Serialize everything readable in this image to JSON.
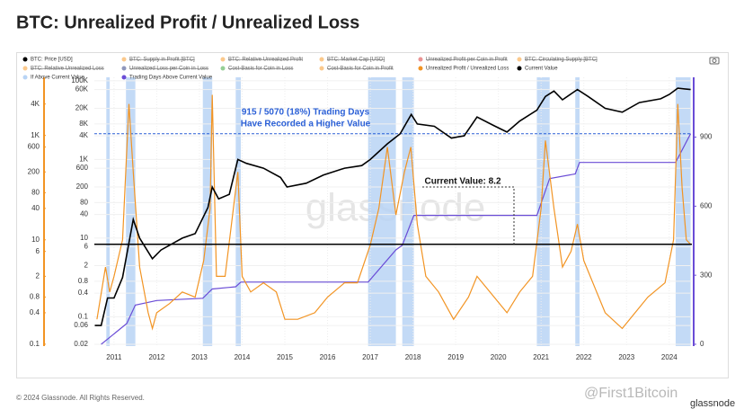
{
  "title": "BTC: Unrealized Profit / Unrealized Loss",
  "footer": "© 2024 Glassnode. All Rights Reserved.",
  "logo": "glassnode",
  "watermark": "glassnode",
  "credit": "@First1Bitcoin",
  "chart_data": {
    "type": "line",
    "xlim": [
      2010.54,
      2024.53
    ],
    "xticks": [
      2011,
      2012,
      2013,
      2014,
      2015,
      2016,
      2017,
      2018,
      2019,
      2020,
      2021,
      2022,
      2023,
      2024
    ],
    "ylim": [
      0.018,
      123000
    ],
    "log": true,
    "grid": true,
    "yticks": [
      {
        "value": 100000,
        "label": "100K"
      },
      {
        "value": 60000,
        "label": "60K"
      },
      {
        "value": 20000,
        "label": "20K"
      },
      {
        "value": 8000,
        "label": "8K"
      },
      {
        "value": 4000,
        "label": "4K"
      },
      {
        "value": 1000,
        "label": "1K"
      },
      600,
      200,
      80,
      40,
      10,
      6,
      2,
      0.8,
      0.4,
      0.1,
      0.06,
      0.02
    ],
    "y3lim": [
      0.092,
      13000
    ],
    "y3ticks": [
      {
        "value": 4000,
        "label": "4K"
      },
      {
        "value": 1000,
        "label": "1K"
      },
      600,
      200,
      80,
      40,
      10,
      6,
      2,
      0.8,
      0.4,
      0.1
    ],
    "y2lim": [
      -8,
      1160
    ],
    "y2ticks": [
      0,
      300,
      600,
      900
    ],
    "annotations": [
      "915 / 5070 (18%) Trading Days",
      "Have Recorded a Higher Value",
      "Current Value: 8.2"
    ],
    "reference_line": {
      "value": 915,
      "axis": "y2",
      "color": "#2a5fd6"
    },
    "series": [
      {
        "name": "BTC: Price [USD]",
        "color": "#000000",
        "axis": "y",
        "x": [
          2010.55,
          2010.7,
          2010.85,
          2011.0,
          2011.2,
          2011.45,
          2011.6,
          2011.9,
          2012.1,
          2012.6,
          2012.9,
          2013.2,
          2013.3,
          2013.45,
          2013.7,
          2013.9,
          2014.1,
          2014.5,
          2014.9,
          2015.05,
          2015.5,
          2015.9,
          2016.4,
          2016.8,
          2017.0,
          2017.4,
          2017.7,
          2017.96,
          2018.1,
          2018.5,
          2018.9,
          2019.2,
          2019.5,
          2019.9,
          2020.2,
          2020.5,
          2020.9,
          2021.1,
          2021.3,
          2021.5,
          2021.85,
          2022.1,
          2022.5,
          2022.9,
          2023.3,
          2023.8,
          2024.0,
          2024.2,
          2024.5
        ],
        "values": [
          0.06,
          0.06,
          0.3,
          0.3,
          1,
          30,
          10,
          3,
          5,
          10,
          13,
          60,
          200,
          100,
          130,
          1000,
          800,
          600,
          350,
          200,
          250,
          400,
          600,
          700,
          1000,
          2500,
          4500,
          14000,
          8000,
          7000,
          3500,
          4000,
          12000,
          7200,
          5000,
          9500,
          18000,
          40000,
          55000,
          33000,
          60000,
          40000,
          20000,
          16000,
          28000,
          35000,
          45000,
          65000,
          60000
        ]
      },
      {
        "name": "BTC: Supply in Profit [BTC]",
        "color": "#f7931a",
        "visible": false
      },
      {
        "name": "BTC: Relative Unrealized Profit",
        "color": "#f7931a",
        "visible": false
      },
      {
        "name": "BTC: Market Cap [USD]",
        "color": "#f7931a",
        "visible": false
      },
      {
        "name": "Unrealized Profit per Coin in Profit",
        "color": "#d62728",
        "visible": false
      },
      {
        "name": "BTC: Circulating Supply [BTC]",
        "color": "#f7931a",
        "visible": false
      },
      {
        "name": "BTC: Relative Unrealized Loss",
        "color": "#f7931a",
        "visible": false
      },
      {
        "name": "Unrealized Loss per Coin in Loss",
        "color": "#1f2f7a",
        "visible": false
      },
      {
        "name": "Cost-Basis for Coin in Loss",
        "color": "#2ca02c",
        "visible": false
      },
      {
        "name": "Cost-Basis for Coin in Profit",
        "color": "#f7931a",
        "visible": false
      },
      {
        "name": "Unrealized Profit / Unrealized Loss",
        "color": "#f29423",
        "axis": "y3",
        "x": [
          2010.6,
          2010.8,
          2010.9,
          2011.0,
          2011.2,
          2011.35,
          2011.45,
          2011.6,
          2011.8,
          2011.9,
          2012.0,
          2012.3,
          2012.6,
          2012.9,
          2013.1,
          2013.25,
          2013.3,
          2013.4,
          2013.6,
          2013.9,
          2014.0,
          2014.2,
          2014.5,
          2014.8,
          2015.0,
          2015.3,
          2015.7,
          2016.0,
          2016.4,
          2016.7,
          2017.0,
          2017.2,
          2017.4,
          2017.6,
          2017.8,
          2017.95,
          2018.1,
          2018.3,
          2018.6,
          2018.95,
          2019.3,
          2019.5,
          2019.8,
          2020.2,
          2020.5,
          2020.8,
          2021.0,
          2021.1,
          2021.3,
          2021.5,
          2021.7,
          2021.85,
          2022.0,
          2022.3,
          2022.5,
          2022.9,
          2023.2,
          2023.5,
          2023.9,
          2024.1,
          2024.2,
          2024.3,
          2024.4,
          2024.5
        ],
        "values": [
          0.3,
          3,
          1,
          2,
          10,
          4000,
          200,
          3,
          0.4,
          0.2,
          0.4,
          0.6,
          1,
          0.8,
          4,
          40,
          6000,
          2,
          2,
          200,
          2,
          1,
          1.5,
          1,
          0.3,
          0.3,
          0.4,
          0.8,
          1.5,
          1.5,
          8,
          40,
          600,
          30,
          200,
          600,
          20,
          2,
          1,
          0.3,
          0.8,
          2,
          1,
          0.4,
          1,
          2,
          40,
          800,
          40,
          3,
          6,
          20,
          4,
          1,
          0.4,
          0.2,
          0.4,
          0.8,
          1.5,
          10,
          4000,
          100,
          10,
          8.2
        ]
      },
      {
        "name": "Current Value",
        "color": "#000000",
        "axis": "y3",
        "value": 8.2
      },
      {
        "name": "If Above Current Value",
        "color": "#b8d4f5",
        "regions": [
          [
            2010.82,
            2010.9
          ],
          [
            2011.28,
            2011.5
          ],
          [
            2013.08,
            2013.3
          ],
          [
            2013.85,
            2013.97
          ],
          [
            2016.95,
            2017.6
          ],
          [
            2017.75,
            2018.02
          ],
          [
            2020.9,
            2021.2
          ],
          [
            2021.8,
            2021.9
          ],
          [
            2024.15,
            2024.5
          ]
        ]
      },
      {
        "name": "Trading Days Above Current Value",
        "color": "#6a4cd6",
        "axis": "y2",
        "x": [
          2010.7,
          2010.9,
          2011.3,
          2011.5,
          2012.0,
          2013.08,
          2013.3,
          2013.85,
          2013.97,
          2016.95,
          2017.6,
          2017.75,
          2018.02,
          2020.9,
          2021.2,
          2021.8,
          2021.9,
          2024.15,
          2024.5
        ],
        "values": [
          0,
          30,
          90,
          170,
          190,
          200,
          240,
          250,
          270,
          270,
          410,
          430,
          560,
          560,
          720,
          740,
          790,
          790,
          915
        ]
      }
    ]
  }
}
